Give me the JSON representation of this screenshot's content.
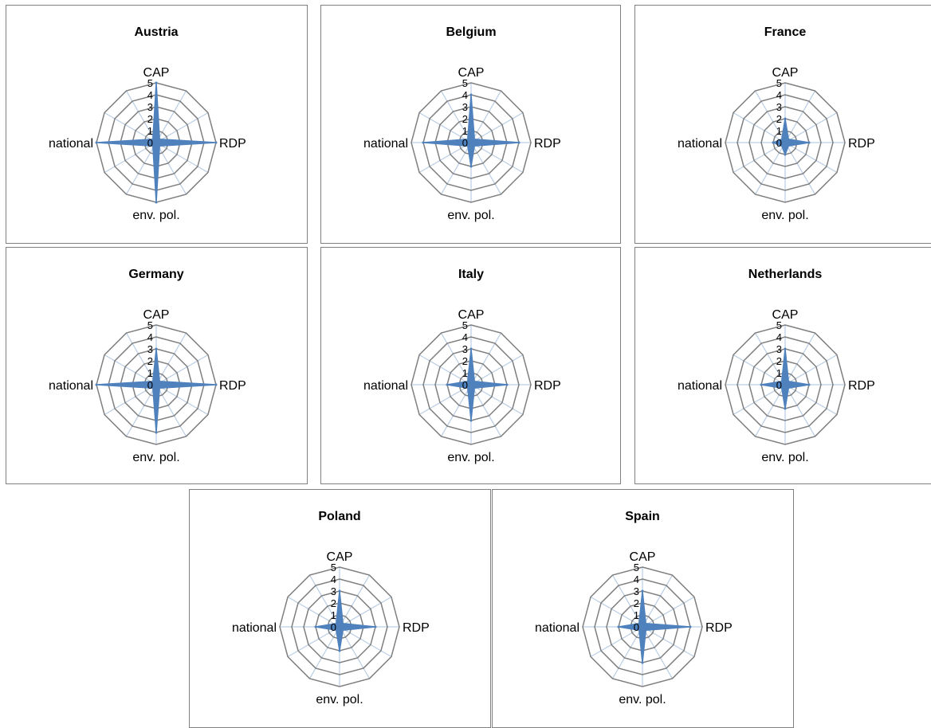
{
  "chart_data": {
    "type": "radar",
    "axes": [
      "CAP",
      "RDP",
      "env. pol.",
      "national"
    ],
    "rlim": [
      0,
      5
    ],
    "ticks": [
      "0",
      "1",
      "2",
      "3",
      "4",
      "5"
    ],
    "grid": true,
    "series_color": "#4F81BD",
    "ring_color": "#7F7F7F",
    "spoke_color": "#B9CDE5",
    "panels": [
      {
        "title": "Austria",
        "values": [
          5,
          5,
          5,
          5
        ]
      },
      {
        "title": "Belgium",
        "values": [
          4,
          4,
          2,
          4
        ]
      },
      {
        "title": "France",
        "values": [
          2,
          2,
          1,
          1
        ]
      },
      {
        "title": "Germany",
        "values": [
          3,
          5,
          4,
          5
        ]
      },
      {
        "title": "Italy",
        "values": [
          3,
          3,
          3,
          2
        ]
      },
      {
        "title": "Netherlands",
        "values": [
          3,
          2,
          2,
          2
        ]
      },
      {
        "title": "Poland",
        "values": [
          3,
          3,
          2,
          2
        ]
      },
      {
        "title": "Spain",
        "values": [
          3,
          4,
          3,
          2
        ]
      }
    ]
  }
}
